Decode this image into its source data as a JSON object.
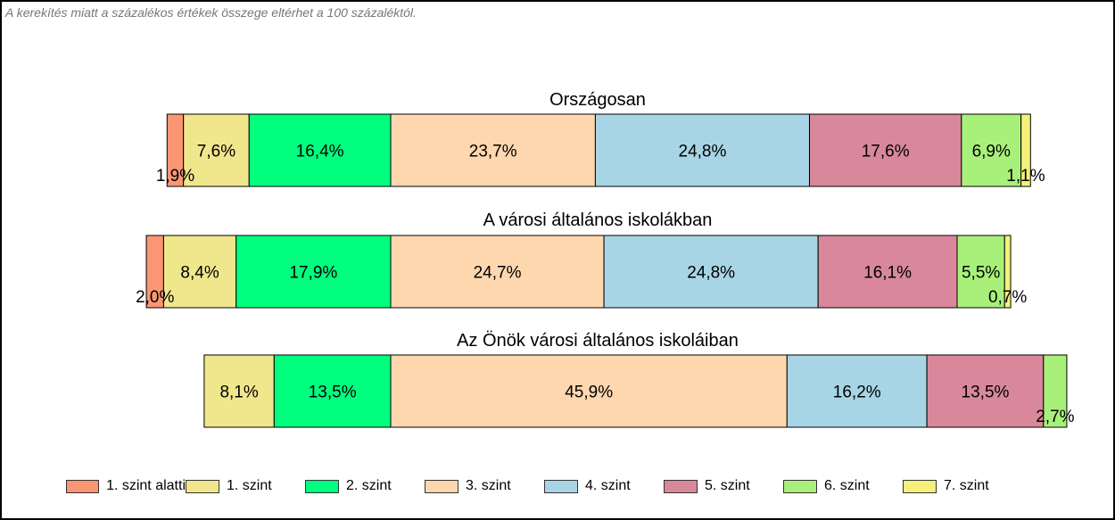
{
  "note": "A kerekítés miatt a  százalékos értékek összege eltérhet a 100 százaléktól.",
  "chart_data": {
    "type": "bar",
    "orientation": "horizontal-stacked-100",
    "levels": [
      "1. szint alatti",
      "1. szint",
      "2. szint",
      "3. szint",
      "4. szint",
      "5. szint",
      "6. szint",
      "7. szint"
    ],
    "colors": [
      "#fa9673",
      "#f0e68c",
      "#00ff7f",
      "#ffd7af",
      "#a8d5e5",
      "#d8889a",
      "#a8f07a",
      "#f5f07a"
    ],
    "legend_position": "bottom",
    "grid": false,
    "groups": [
      {
        "name": "Országosan",
        "values": [
          1.9,
          7.6,
          16.4,
          23.7,
          24.8,
          17.6,
          6.9,
          1.1
        ],
        "labels": [
          "1,9%",
          "7,6%",
          "16,4%",
          "23,7%",
          "24,8%",
          "17,6%",
          "6,9%",
          "1,1%"
        ]
      },
      {
        "name": "A városi általános iskolákban",
        "values": [
          2.0,
          8.4,
          17.9,
          24.7,
          24.8,
          16.1,
          5.5,
          0.7
        ],
        "labels": [
          "2,0%",
          "8,4%",
          "17,9%",
          "24,7%",
          "24,8%",
          "16,1%",
          "5,5%",
          "0,7%"
        ]
      },
      {
        "name": "Az Önök városi általános iskoláiban",
        "values": [
          0,
          8.1,
          13.5,
          45.9,
          16.2,
          13.5,
          2.7,
          0
        ],
        "labels": [
          "",
          "8,1%",
          "13,5%",
          "45,9%",
          "16,2%",
          "13,5%",
          "2,7%",
          ""
        ]
      }
    ]
  }
}
